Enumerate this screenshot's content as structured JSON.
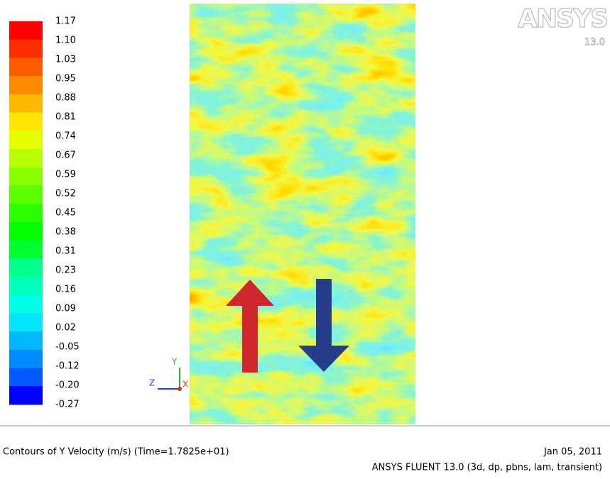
{
  "colorbar": {
    "labels": [
      "1.17",
      "1.10",
      "1.03",
      "0.95",
      "0.88",
      "0.81",
      "0.74",
      "0.67",
      "0.59",
      "0.52",
      "0.45",
      "0.38",
      "0.31",
      "0.23",
      "0.16",
      "0.09",
      "0.02",
      "-0.05",
      "-0.12",
      "-0.20",
      "-0.27"
    ],
    "colors": [
      "#ff0000",
      "#ff2e00",
      "#ff5c00",
      "#ff8a00",
      "#ffb800",
      "#ffe600",
      "#e6ff00",
      "#b8ff00",
      "#8aff00",
      "#5cff00",
      "#2eff00",
      "#00ff00",
      "#00ff2e",
      "#00ff8a",
      "#00ffb8",
      "#00ffe6",
      "#00e6ff",
      "#00b8ff",
      "#008aff",
      "#005cff",
      "#0000ff"
    ]
  },
  "logo": {
    "brand": "ANSYS",
    "version": "13.0"
  },
  "triad": {
    "y": "Y",
    "z": "Z",
    "x": "X"
  },
  "footer": {
    "caption": "Contours of Y Velocity (m/s)  (Time=1.7825e+01)",
    "date": "Jan 05, 2011",
    "solver": "ANSYS FLUENT 13.0 (3d, dp, pbns, lam, transient)"
  }
}
